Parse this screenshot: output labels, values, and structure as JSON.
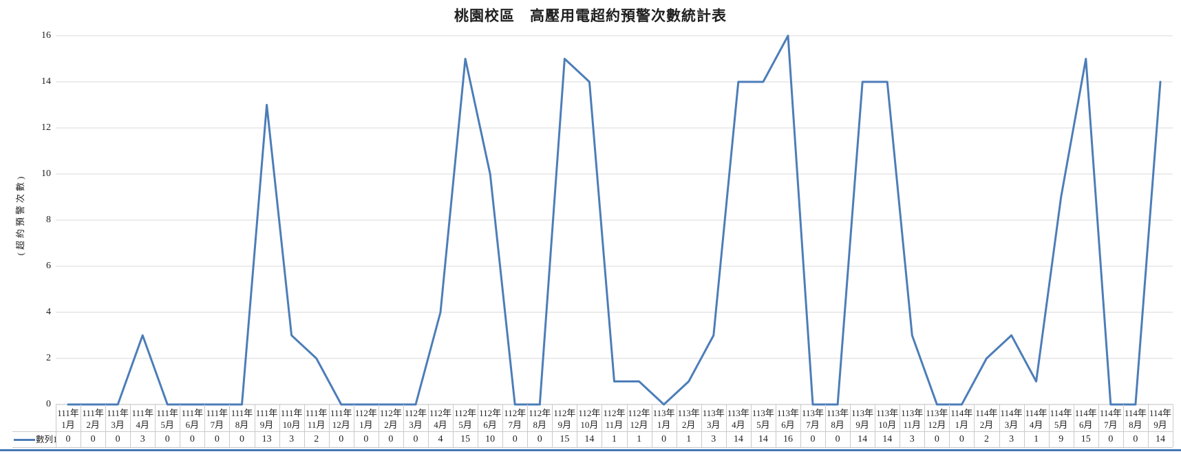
{
  "title": "桃園校區　高壓用電超約預警次數統計表",
  "colors": {
    "series_line": "#4C7DB8",
    "gridline": "#D9D9D9",
    "axis_line": "#BFBFBF",
    "table_border": "#C9C9C9",
    "bottom_rule": "#4677B7",
    "text": "#1f1f1f"
  },
  "chart_data": {
    "type": "line",
    "title": "桃園校區　高壓用電超約預警次數統計表",
    "xlabel": "",
    "ylabel": "(超約預警次數)",
    "ylim": [
      0,
      16
    ],
    "yticks": [
      0,
      2,
      4,
      6,
      8,
      10,
      12,
      14,
      16
    ],
    "grid": true,
    "legend_position": "data-table-left",
    "data_table_shown": true,
    "categories": [
      "111年 1月",
      "111年 2月",
      "111年 3月",
      "111年 4月",
      "111年 5月",
      "111年 6月",
      "111年 7月",
      "111年 8月",
      "111年 9月",
      "111年 10月",
      "111年 11月",
      "111年 12月",
      "112年 1月",
      "112年 2月",
      "112年 3月",
      "112年 4月",
      "112年 5月",
      "112年 6月",
      "112年 7月",
      "112年 8月",
      "112年 9月",
      "112年 10月",
      "112年 11月",
      "112年 12月",
      "113年 1月",
      "113年 2月",
      "113年 3月",
      "113年 4月",
      "113年 5月",
      "113年 6月",
      "113年 7月",
      "113年 8月",
      "113年 9月",
      "113年 10月",
      "113年 11月",
      "113年 12月",
      "114年 1月",
      "114年 2月",
      "114年 3月",
      "114年 4月",
      "114年 5月",
      "114年 6月",
      "114年 7月",
      "114年 8月",
      "114年 9月"
    ],
    "series": [
      {
        "name": "數列1",
        "values": [
          0,
          0,
          0,
          3,
          0,
          0,
          0,
          0,
          13,
          3,
          2,
          0,
          0,
          0,
          0,
          4,
          15,
          10,
          0,
          0,
          15,
          14,
          1,
          1,
          0,
          1,
          3,
          14,
          14,
          16,
          0,
          0,
          14,
          14,
          3,
          0,
          0,
          2,
          3,
          1,
          9,
          15,
          0,
          0,
          14
        ]
      }
    ]
  }
}
